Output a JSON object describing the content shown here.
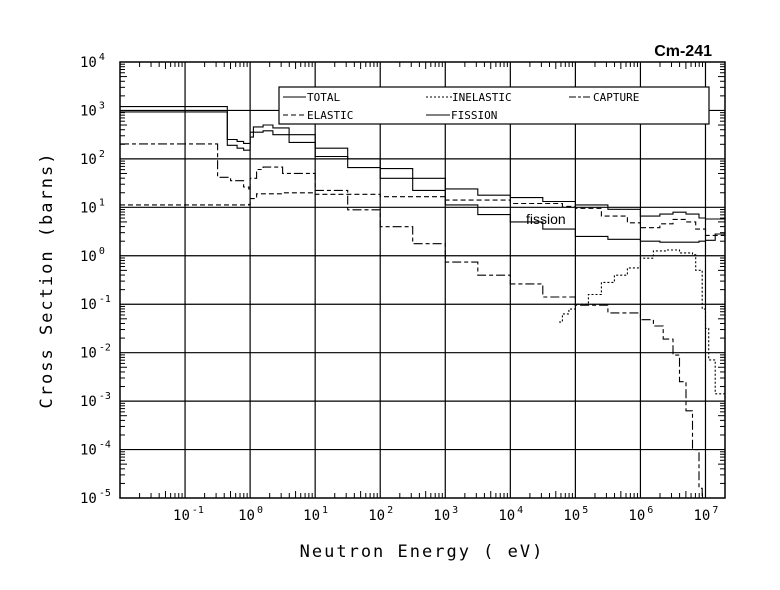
{
  "chart_data": {
    "type": "line",
    "title": "Cm-241",
    "xlabel": "Neutron Energy (  eV)",
    "ylabel": "Cross Section (barns)",
    "xscale": "log",
    "yscale": "log",
    "xlim_log10": [
      -2,
      7.3
    ],
    "ylim_log10": [
      -5,
      4
    ],
    "grid": true,
    "x_ticks": [
      {
        "base": "10",
        "exp": "-1",
        "log": -1
      },
      {
        "base": "10",
        "exp": "0",
        "log": 0
      },
      {
        "base": "10",
        "exp": "1",
        "log": 1
      },
      {
        "base": "10",
        "exp": "2",
        "log": 2
      },
      {
        "base": "10",
        "exp": "3",
        "log": 3
      },
      {
        "base": "10",
        "exp": "4",
        "log": 4
      },
      {
        "base": "10",
        "exp": "5",
        "log": 5
      },
      {
        "base": "10",
        "exp": "6",
        "log": 6
      },
      {
        "base": "10",
        "exp": "7",
        "log": 7
      }
    ],
    "y_ticks": [
      {
        "base": "10",
        "exp": "4",
        "log": 4
      },
      {
        "base": "10",
        "exp": "3",
        "log": 3
      },
      {
        "base": "10",
        "exp": "2",
        "log": 2
      },
      {
        "base": "10",
        "exp": "1",
        "log": 1
      },
      {
        "base": "10",
        "exp": "0",
        "log": 0
      },
      {
        "base": "10",
        "exp": "-1",
        "log": -1
      },
      {
        "base": "10",
        "exp": "-2",
        "log": -2
      },
      {
        "base": "10",
        "exp": "-3",
        "log": -3
      },
      {
        "base": "10",
        "exp": "-4",
        "log": -4
      },
      {
        "base": "10",
        "exp": "-5",
        "log": -5
      }
    ],
    "legend": {
      "placement": "top-center",
      "entries": [
        {
          "label": "TOTAL",
          "series": "total"
        },
        {
          "label": "INELASTIC",
          "series": "inelastic"
        },
        {
          "label": "CAPTURE",
          "series": "capture"
        },
        {
          "label": "ELASTIC",
          "series": "elastic"
        },
        {
          "label": "FISSION",
          "series": "fission"
        }
      ]
    },
    "annotation": {
      "text": "fission",
      "at_log10": [
        4.3,
        0.75
      ]
    },
    "series": [
      {
        "name": "total",
        "style": "solid",
        "points_log10": [
          [
            -2,
            3.08
          ],
          [
            -0.35,
            2.4
          ],
          [
            -0.2,
            2.36
          ],
          [
            -0.1,
            2.32
          ],
          [
            -0.02,
            2.32
          ],
          [
            0,
            2.55
          ],
          [
            0.05,
            2.66
          ],
          [
            0.2,
            2.7
          ],
          [
            0.35,
            2.64
          ],
          [
            0.6,
            2.5
          ],
          [
            1,
            2.22
          ],
          [
            1.5,
            2.0
          ],
          [
            2,
            1.8
          ],
          [
            2.5,
            1.6
          ],
          [
            3,
            1.38
          ],
          [
            3.5,
            1.25
          ],
          [
            4,
            1.2
          ],
          [
            4.5,
            1.12
          ],
          [
            5,
            1.05
          ],
          [
            5.5,
            0.96
          ],
          [
            6,
            0.82
          ],
          [
            6.3,
            0.86
          ],
          [
            6.5,
            0.9
          ],
          [
            6.7,
            0.86
          ],
          [
            6.9,
            0.78
          ],
          [
            7,
            0.76
          ],
          [
            7.3,
            0.8
          ]
        ]
      },
      {
        "name": "fission",
        "style": "solid",
        "points_log10": [
          [
            -2,
            2.97
          ],
          [
            -0.35,
            2.28
          ],
          [
            -0.2,
            2.22
          ],
          [
            -0.1,
            2.18
          ],
          [
            -0.02,
            2.18
          ],
          [
            0,
            2.45
          ],
          [
            0.05,
            2.55
          ],
          [
            0.2,
            2.58
          ],
          [
            0.35,
            2.5
          ],
          [
            0.6,
            2.34
          ],
          [
            1,
            2.05
          ],
          [
            1.5,
            1.82
          ],
          [
            2,
            1.6
          ],
          [
            2.5,
            1.35
          ],
          [
            3,
            1.05
          ],
          [
            3.5,
            0.85
          ],
          [
            4,
            0.7
          ],
          [
            4.5,
            0.55
          ],
          [
            5,
            0.4
          ],
          [
            5.5,
            0.34
          ],
          [
            6,
            0.3
          ],
          [
            6.3,
            0.28
          ],
          [
            6.6,
            0.28
          ],
          [
            6.9,
            0.3
          ],
          [
            7,
            0.32
          ],
          [
            7.15,
            0.45
          ],
          [
            7.3,
            0.5
          ]
        ]
      },
      {
        "name": "capture",
        "style": "long-dash",
        "points_log10": [
          [
            -2,
            2.31
          ],
          [
            -0.5,
            1.62
          ],
          [
            -0.3,
            1.55
          ],
          [
            -0.1,
            1.42
          ],
          [
            -0.02,
            1.38
          ],
          [
            0,
            1.6
          ],
          [
            0.1,
            1.78
          ],
          [
            0.2,
            1.83
          ],
          [
            0.5,
            1.7
          ],
          [
            1,
            1.35
          ],
          [
            1.5,
            0.95
          ],
          [
            2,
            0.6
          ],
          [
            2.5,
            0.25
          ],
          [
            3,
            -0.13
          ],
          [
            3.5,
            -0.4
          ],
          [
            4,
            -0.58
          ],
          [
            4.5,
            -0.85
          ],
          [
            5,
            -1.02
          ],
          [
            5.5,
            -1.18
          ],
          [
            6,
            -1.32
          ],
          [
            6.2,
            -1.45
          ],
          [
            6.35,
            -1.72
          ],
          [
            6.5,
            -2.05
          ],
          [
            6.6,
            -2.6
          ],
          [
            6.7,
            -3.2
          ],
          [
            6.8,
            -4.0
          ],
          [
            6.9,
            -4.8
          ],
          [
            6.95,
            -5.0
          ]
        ]
      },
      {
        "name": "elastic",
        "style": "dash",
        "points_log10": [
          [
            -2,
            1.05
          ],
          [
            -0.02,
            1.06
          ],
          [
            0,
            1.18
          ],
          [
            0.1,
            1.28
          ],
          [
            0.5,
            1.3
          ],
          [
            1,
            1.27
          ],
          [
            2,
            1.22
          ],
          [
            3,
            1.15
          ],
          [
            4,
            1.08
          ],
          [
            4.8,
            1.02
          ],
          [
            5,
            0.98
          ],
          [
            5.4,
            0.82
          ],
          [
            5.8,
            0.68
          ],
          [
            6,
            0.58
          ],
          [
            6.3,
            0.66
          ],
          [
            6.5,
            0.75
          ],
          [
            6.7,
            0.7
          ],
          [
            6.85,
            0.55
          ],
          [
            7,
            0.42
          ],
          [
            7.3,
            0.45
          ]
        ]
      },
      {
        "name": "inelastic",
        "style": "short-dash",
        "points_log10": [
          [
            4.75,
            -1.37
          ],
          [
            4.8,
            -1.2
          ],
          [
            4.9,
            -1.1
          ],
          [
            5.0,
            -1.0
          ],
          [
            5.2,
            -0.8
          ],
          [
            5.4,
            -0.55
          ],
          [
            5.6,
            -0.4
          ],
          [
            5.8,
            -0.25
          ],
          [
            6.0,
            -0.05
          ],
          [
            6.2,
            0.1
          ],
          [
            6.4,
            0.12
          ],
          [
            6.6,
            0.06
          ],
          [
            6.8,
            0.02
          ],
          [
            6.85,
            -0.3
          ],
          [
            6.95,
            -1.1
          ],
          [
            7.0,
            -1.5
          ],
          [
            7.05,
            -2.15
          ],
          [
            7.15,
            -2.85
          ],
          [
            7.3,
            -3.0
          ]
        ]
      }
    ]
  }
}
